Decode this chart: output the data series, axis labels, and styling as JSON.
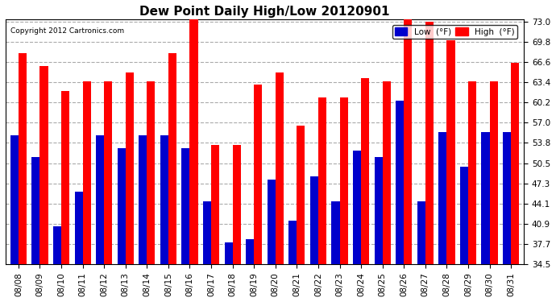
{
  "title": "Dew Point Daily High/Low 20120901",
  "copyright": "Copyright 2012 Cartronics.com",
  "dates": [
    "08/08",
    "08/09",
    "08/10",
    "08/11",
    "08/12",
    "08/13",
    "08/14",
    "08/15",
    "08/16",
    "08/17",
    "08/18",
    "08/19",
    "08/20",
    "08/21",
    "08/22",
    "08/23",
    "08/24",
    "08/25",
    "08/26",
    "08/27",
    "08/28",
    "08/29",
    "08/30",
    "08/31"
  ],
  "high_values": [
    68.0,
    66.0,
    62.0,
    63.5,
    63.5,
    65.0,
    63.5,
    68.0,
    73.5,
    53.5,
    53.5,
    63.0,
    65.0,
    56.5,
    61.0,
    61.0,
    64.0,
    63.5,
    73.5,
    73.0,
    70.0,
    63.5,
    63.5,
    66.5
  ],
  "low_values": [
    55.0,
    51.5,
    40.5,
    46.0,
    55.0,
    53.0,
    55.0,
    55.0,
    53.0,
    44.5,
    38.0,
    38.5,
    48.0,
    41.5,
    48.5,
    44.5,
    52.5,
    51.5,
    60.5,
    44.5,
    55.5,
    50.0,
    55.5,
    55.5
  ],
  "ylim_min": 34.5,
  "ylim_max": 73.0,
  "yticks": [
    34.5,
    37.7,
    40.9,
    44.1,
    47.3,
    50.5,
    53.8,
    57.0,
    60.2,
    63.4,
    66.6,
    69.8,
    73.0
  ],
  "bar_width": 0.38,
  "high_color": "#FF0000",
  "low_color": "#0000CC",
  "bg_color": "#FFFFFF",
  "plot_bg_color": "#FFFFFF",
  "grid_color": "#AAAAAA",
  "title_fontsize": 11,
  "tick_fontsize": 7.5
}
